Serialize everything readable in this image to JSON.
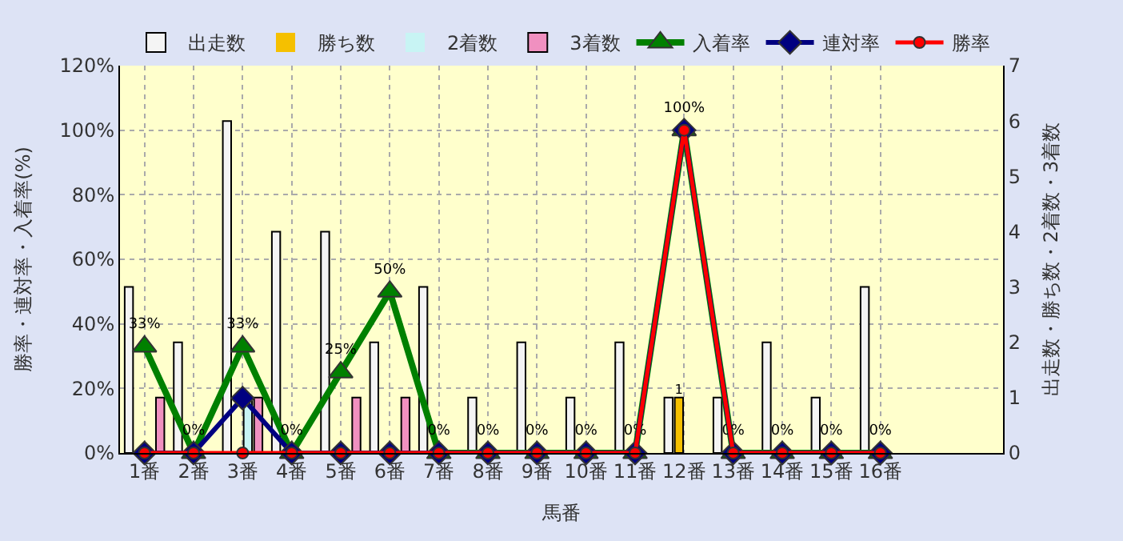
{
  "chart_data": {
    "type": "bar",
    "xlabel": "馬番",
    "ylabel": "勝率・連対率・入着率(%)",
    "y2label": "出走数・勝ち数・2着数・3着数",
    "categories": [
      "1番",
      "2番",
      "3番",
      "4番",
      "5番",
      "6番",
      "7番",
      "8番",
      "9番",
      "10番",
      "11番",
      "12番",
      "13番",
      "14番",
      "15番",
      "16番",
      null,
      null
    ],
    "series": [
      {
        "name": "出走数",
        "axis": "y2",
        "color": "#f4f4f4",
        "values": [
          3,
          2,
          6,
          4,
          4,
          2,
          3,
          1,
          2,
          1,
          2,
          1,
          1,
          2,
          1,
          3,
          null,
          null
        ]
      },
      {
        "name": "勝ち数",
        "axis": "y2",
        "color": "#f5c000",
        "values": [
          0,
          0,
          0,
          0,
          0,
          0,
          0,
          0,
          0,
          0,
          0,
          1,
          0,
          0,
          0,
          0,
          null,
          null
        ],
        "value_labels": [
          null,
          null,
          null,
          null,
          null,
          null,
          null,
          null,
          null,
          null,
          null,
          "1",
          null,
          null,
          null,
          null,
          null,
          null
        ]
      },
      {
        "name": "2着数",
        "axis": "y2",
        "color": "#c8f4f4",
        "values": [
          0,
          0,
          1,
          0,
          0,
          0,
          0,
          0,
          0,
          0,
          0,
          0,
          0,
          0,
          0,
          0,
          null,
          null
        ]
      },
      {
        "name": "3着数",
        "axis": "y2",
        "color": "#f090c0",
        "values": [
          1,
          0,
          1,
          0,
          1,
          1,
          0,
          0,
          0,
          0,
          0,
          0,
          0,
          0,
          0,
          0,
          null,
          null
        ]
      },
      {
        "name": "入着率",
        "type": "line",
        "color": "#008000",
        "marker": "triangle",
        "values": [
          33,
          0,
          33,
          0,
          25,
          50,
          0,
          0,
          0,
          0,
          0,
          100,
          0,
          0,
          0,
          0,
          null,
          null
        ],
        "value_labels": [
          "33%",
          "0%",
          "33%",
          "0%",
          "25%",
          "50%",
          "0%",
          "0%",
          "0%",
          "0%",
          "0%",
          "100%",
          "0%",
          "0%",
          "0%",
          "0%",
          null,
          null
        ]
      },
      {
        "name": "連対率",
        "type": "line",
        "color": "#000080",
        "marker": "diamond",
        "values": [
          0,
          0,
          17,
          0,
          0,
          0,
          0,
          0,
          0,
          0,
          0,
          100,
          0,
          0,
          0,
          0,
          null,
          null
        ]
      },
      {
        "name": "勝率",
        "type": "line",
        "color": "#ff0000",
        "marker": "circle",
        "values": [
          0,
          0,
          0,
          0,
          0,
          0,
          0,
          0,
          0,
          0,
          0,
          100,
          0,
          0,
          0,
          0,
          null,
          null
        ]
      }
    ],
    "ylim": [
      0,
      120
    ],
    "yticks": [
      {
        "value": 0,
        "label": "0%"
      },
      {
        "value": 20,
        "label": "20%"
      },
      {
        "value": 40,
        "label": "40%"
      },
      {
        "value": 60,
        "label": "60%"
      },
      {
        "value": 80,
        "label": "80%"
      },
      {
        "value": 100,
        "label": "100%"
      },
      {
        "value": 120,
        "label": "120%"
      }
    ],
    "y2lim": [
      0,
      7
    ],
    "y2ticks": [
      0,
      1,
      2,
      3,
      4,
      5,
      6,
      7
    ],
    "grid": true,
    "legend": "top"
  }
}
